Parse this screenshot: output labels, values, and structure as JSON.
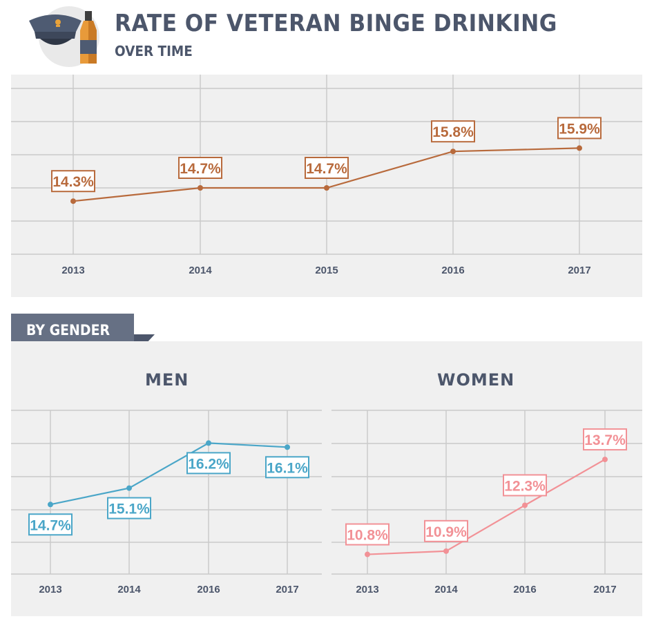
{
  "header": {
    "title": "RATE OF VETERAN BINGE DRINKING",
    "subtitle": "OVER TIME",
    "icons": [
      "military-cap-icon",
      "liquor-bottle-icon"
    ]
  },
  "section_label": "BY GENDER",
  "colors": {
    "overall": "#b86a3c",
    "men": "#4aa6c8",
    "women": "#f29196",
    "text": "#4c566b",
    "ribbon": "#667084"
  },
  "chart_data": [
    {
      "type": "line",
      "title": "",
      "categories": [
        "2013",
        "2014",
        "2015",
        "2016",
        "2017"
      ],
      "series": [
        {
          "values": [
            14.3,
            14.7,
            14.7,
            15.8,
            15.9
          ]
        }
      ],
      "data_labels": [
        "14.3%",
        "14.7%",
        "14.7%",
        "15.8%",
        "15.9%"
      ],
      "label_position": "above",
      "ylim": [
        12.7,
        17.7
      ],
      "grid": true
    },
    {
      "type": "line",
      "title": "MEN",
      "categories": [
        "2013",
        "2014",
        "2016",
        "2017"
      ],
      "series": [
        {
          "values": [
            14.7,
            15.1,
            16.2,
            16.1
          ]
        }
      ],
      "data_labels": [
        "14.7%",
        "15.1%",
        "16.2%",
        "16.1%"
      ],
      "label_position": "below",
      "ylim": [
        13.0,
        17.0
      ],
      "grid": true
    },
    {
      "type": "line",
      "title": "WOMEN",
      "categories": [
        "2013",
        "2014",
        "2016",
        "2017"
      ],
      "series": [
        {
          "values": [
            10.8,
            10.9,
            12.3,
            13.7
          ]
        }
      ],
      "data_labels": [
        "10.8%",
        "10.9%",
        "12.3%",
        "13.7%"
      ],
      "label_position": "above",
      "ylim": [
        10.2,
        15.2
      ],
      "grid": true
    }
  ]
}
